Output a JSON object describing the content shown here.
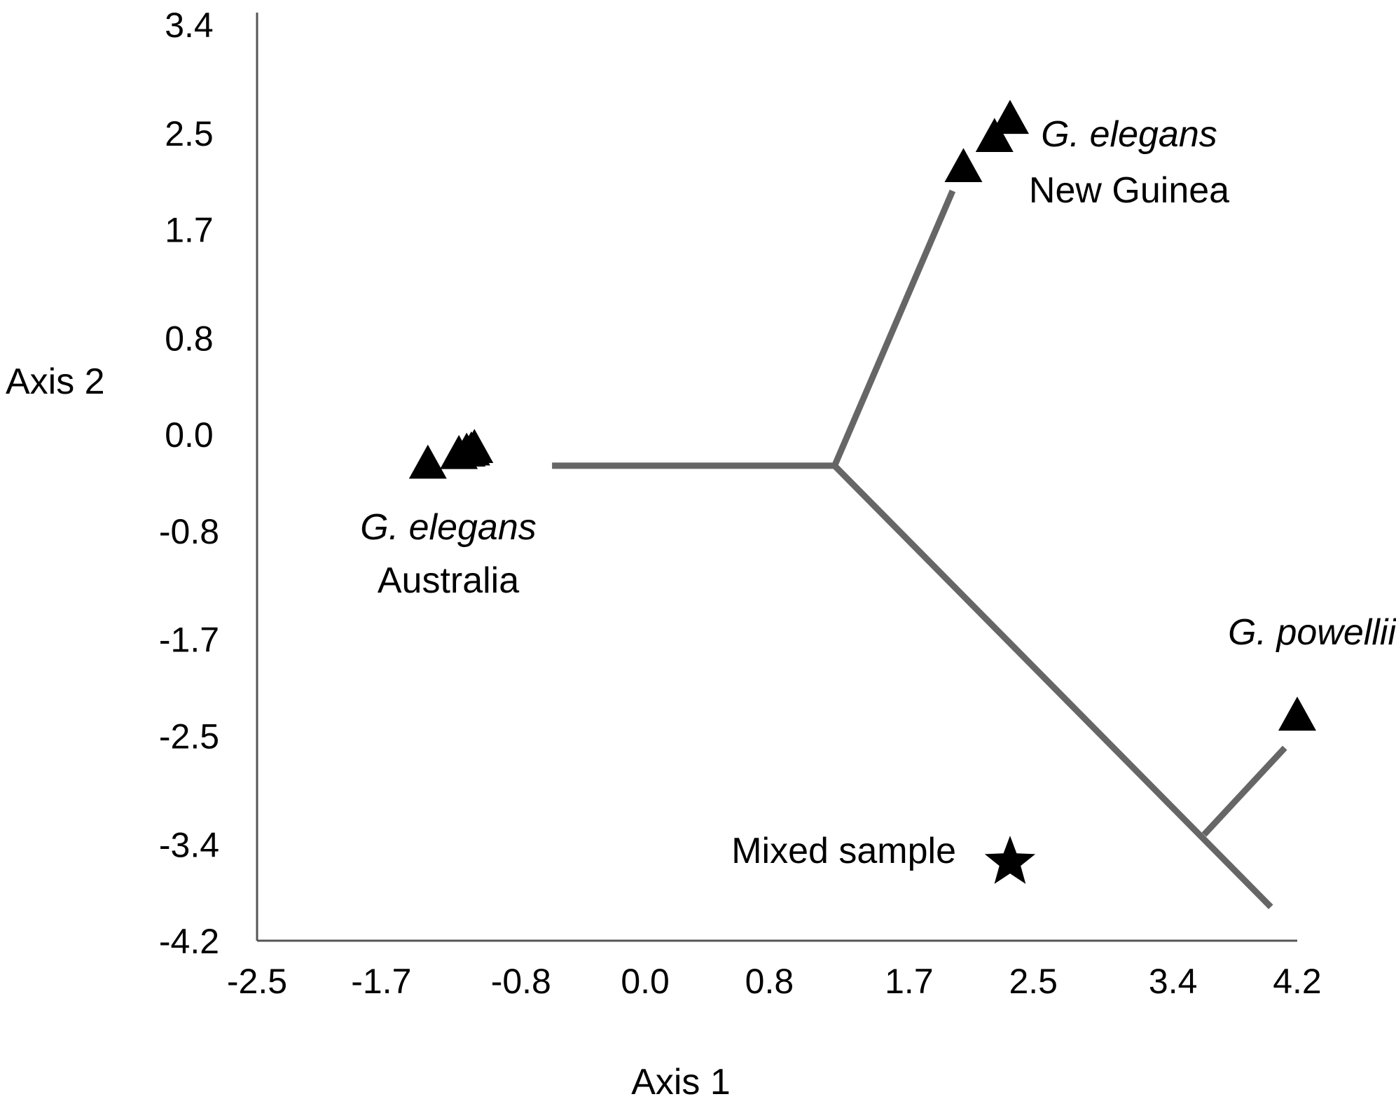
{
  "chart_data": {
    "type": "scatter",
    "xlabel": "Axis 1",
    "ylabel": "Axis 2",
    "xlim": [
      -2.5,
      4.2
    ],
    "ylim": [
      -4.2,
      3.4
    ],
    "x_ticks": [
      "-2.5",
      "-1.7",
      "-0.8",
      "0.0",
      "0.8",
      "1.7",
      "2.5",
      "3.4",
      "4.2"
    ],
    "y_ticks": [
      "3.4",
      "2.5",
      "1.7",
      "0.8",
      "0.0",
      "-0.8",
      "-1.7",
      "-2.5",
      "-3.4",
      "-4.2"
    ],
    "colors": {
      "tree": "#666666",
      "marker": "#000000",
      "axis": "#555555"
    },
    "groups": [
      {
        "species": "G. elegans",
        "region": "Australia",
        "marker": "triangle",
        "points": [
          [
            -1.4,
            -0.26
          ],
          [
            -1.2,
            -0.18
          ],
          [
            -1.15,
            -0.16
          ],
          [
            -1.12,
            -0.15
          ],
          [
            -1.1,
            -0.13
          ]
        ]
      },
      {
        "species": "G. elegans",
        "region": "New Guinea",
        "marker": "triangle",
        "points": [
          [
            2.05,
            2.2
          ],
          [
            2.25,
            2.45
          ],
          [
            2.35,
            2.6
          ]
        ]
      },
      {
        "species": "G. powellii",
        "region": "",
        "marker": "triangle",
        "points": [
          [
            4.2,
            -2.35
          ]
        ]
      },
      {
        "species": "",
        "region": "Mixed sample",
        "marker": "star",
        "points": [
          [
            2.35,
            -3.55
          ]
        ]
      }
    ],
    "tree_segments": [
      [
        [
          -0.6,
          -0.26
        ],
        [
          1.22,
          -0.26
        ]
      ],
      [
        [
          1.22,
          -0.26
        ],
        [
          1.98,
          2.02
        ]
      ],
      [
        [
          1.22,
          -0.26
        ],
        [
          4.03,
          -3.92
        ]
      ],
      [
        [
          3.6,
          -3.32
        ],
        [
          4.12,
          -2.6
        ]
      ]
    ]
  }
}
